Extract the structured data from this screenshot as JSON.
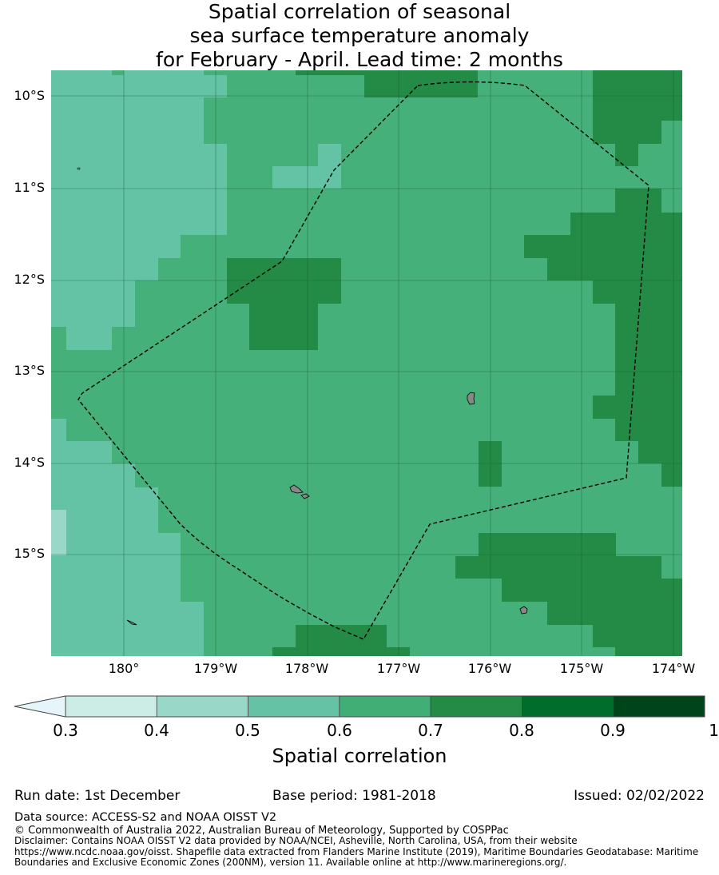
{
  "title": {
    "line1": "Spatial correlation of seasonal",
    "line2": "sea surface temperature anomaly",
    "line3": "for February - April. Lead time: 2 months"
  },
  "map": {
    "lat_labels": [
      "10°S",
      "11°S",
      "12°S",
      "13°S",
      "14°S",
      "15°S"
    ],
    "lon_labels": [
      "180°",
      "179°W",
      "178°W",
      "177°W",
      "176°W",
      "175°W",
      "174°W"
    ],
    "lon_range": [
      179.2,
      -173.9
    ],
    "lat_range": [
      -9.7,
      -16.0
    ],
    "boundary_style": "dashed black line (maritime boundary / EEZ)",
    "grid": "on",
    "colors": {
      "c3": "#64c3a4",
      "c4": "#45b07a",
      "c5": "#238b45",
      "c2": "#99d8c9",
      "land": "#888888",
      "grid": "#1c5a32"
    }
  },
  "colorbar": {
    "ticks": [
      "0.3",
      "0.4",
      "0.5",
      "0.6",
      "0.7",
      "0.8",
      "0.9",
      "1"
    ],
    "colors": [
      "#ccece6",
      "#99d8c9",
      "#66c2a4",
      "#41ae76",
      "#238b45",
      "#006d2c",
      "#00441b"
    ],
    "extend_color": "#e5f5f9",
    "label": "Spatial correlation"
  },
  "footer": {
    "run_date": "Run date: 1st December",
    "base_period": "Base period: 1981-2018",
    "issued": "Issued: 02/02/2022",
    "data_source": "Data source: ACCESS-S2 and NOAA OISST V2",
    "copyright": "© Commonwealth of Australia 2022, Australian Bureau of Meteorology, Supported by COSPPac",
    "disclaimer": "Disclaimer: Contains NOAA OISST V2 data provided by NOAA/NCEI, Asheville, North Carolina, USA, from their website https://www.ncdc.noaa.gov/oisst. Shapefile data extracted from Flanders Marine Institute (2019), Maritime Boundaries Geodatabase: Maritime Boundaries and Exclusive Economic Zones (200NM), version 11. Available online at http://www.marineregions.org/."
  }
}
